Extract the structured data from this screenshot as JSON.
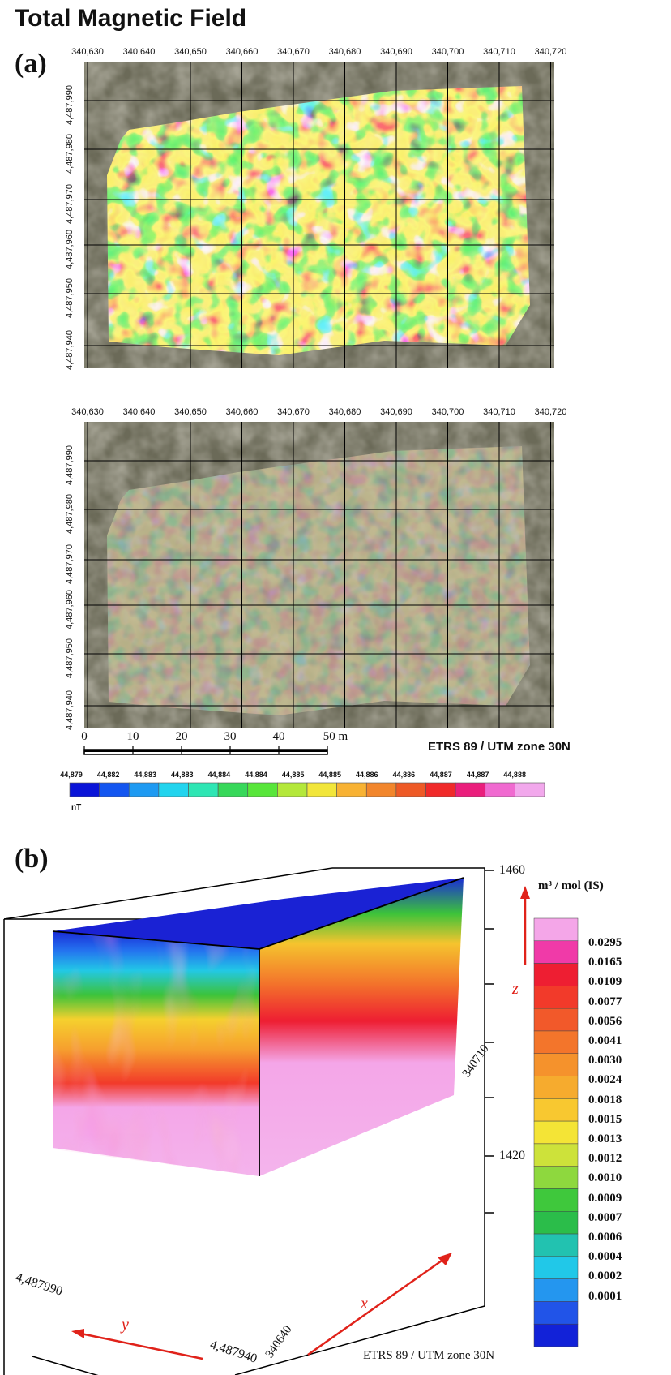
{
  "title": "Total Magnetic Field",
  "panel_a": {
    "label": "(a)",
    "x_ticks": [
      "340,630",
      "340,640",
      "340,650",
      "340,660",
      "340,670",
      "340,680",
      "340,690",
      "340,700",
      "340,710",
      "340,720"
    ],
    "y_ticks": [
      "4,487,990",
      "4,487,980",
      "4,487,970",
      "4,487,960",
      "4,487,950",
      "4,487,940"
    ],
    "scale_bar": {
      "labels": [
        "0",
        "10",
        "20",
        "30",
        "40",
        "50 m"
      ]
    },
    "crs": "ETRS 89 / UTM zone 30N",
    "colorbar": {
      "labels": [
        "44,879",
        "44,882",
        "44,883",
        "44,883",
        "44,884",
        "44,884",
        "44,885",
        "44,885",
        "44,886",
        "44,886",
        "44,887",
        "44,887",
        "44,888"
      ],
      "unit": "nT",
      "colors": [
        "#0a14d8",
        "#1456f0",
        "#1e9af2",
        "#22d4ee",
        "#2ee6b4",
        "#37d85a",
        "#58e63a",
        "#b4e83a",
        "#f2e63a",
        "#f8b233",
        "#f2862c",
        "#ee5a26",
        "#f02a2a",
        "#ea1e7c",
        "#f06ad0",
        "#f2a8ec"
      ]
    }
  },
  "panel_b": {
    "label": "(b)",
    "z_ticks": [
      "1460",
      "1420"
    ],
    "z_label": "z",
    "x_label": "x",
    "y_label": "y",
    "x_ticks": [
      "340640",
      "340710"
    ],
    "y_ticks": [
      "4,487990",
      "4,487940"
    ],
    "crs": "ETRS 89 / UTM zone 30N",
    "legend": {
      "unit": "m³ / mol (IS)",
      "values": [
        "0.0295",
        "0.0165",
        "0.0109",
        "0.0077",
        "0.0056",
        "0.0041",
        "0.0030",
        "0.0024",
        "0.0018",
        "0.0015",
        "0.0013",
        "0.0012",
        "0.0010",
        "0.0009",
        "0.0007",
        "0.0006",
        "0.0004",
        "0.0002",
        "0.0001"
      ],
      "colors": [
        "#f4a6e8",
        "#f03aa8",
        "#ee1e32",
        "#f23a2a",
        "#f2592a",
        "#f3752b",
        "#f5922c",
        "#f6ab2e",
        "#f8c830",
        "#f4e436",
        "#cde23a",
        "#8ed83e",
        "#3fc83c",
        "#2bbd4a",
        "#22c2b0",
        "#21c8e8",
        "#2496ef",
        "#2154e8",
        "#1222d8"
      ]
    }
  },
  "chart_data": [
    {
      "type": "heatmap",
      "title": "Total Magnetic Field",
      "panel": "(a)",
      "x_ticks": [
        340630,
        340640,
        340650,
        340660,
        340670,
        340680,
        340690,
        340700,
        340710,
        340720
      ],
      "y_ticks": [
        4487990,
        4487980,
        4487970,
        4487960,
        4487950,
        4487940
      ],
      "colorbar_labels": [
        "44,879",
        "44,882",
        "44,883",
        "44,883",
        "44,884",
        "44,884",
        "44,885",
        "44,885",
        "44,886",
        "44,886",
        "44,887",
        "44,887",
        "44,888"
      ],
      "unit": "nT",
      "scale_bar_m": [
        0,
        10,
        20,
        30,
        40,
        50
      ],
      "crs": "ETRS 89 / UTM zone 30N"
    },
    {
      "type": "heatmap",
      "panel": "(b)",
      "z_ticks": [
        1460,
        1420
      ],
      "x_ticks": [
        340640,
        340710
      ],
      "y_ticks": [
        4487990,
        4487940
      ],
      "legend_unit": "m³ / mol (IS)",
      "legend_values": [
        0.0295,
        0.0165,
        0.0109,
        0.0077,
        0.0056,
        0.0041,
        0.003,
        0.0024,
        0.0018,
        0.0015,
        0.0013,
        0.0012,
        0.001,
        0.0009,
        0.0007,
        0.0006,
        0.0004,
        0.0002,
        0.0001
      ],
      "crs": "ETRS 89 / UTM zone 30N"
    }
  ]
}
